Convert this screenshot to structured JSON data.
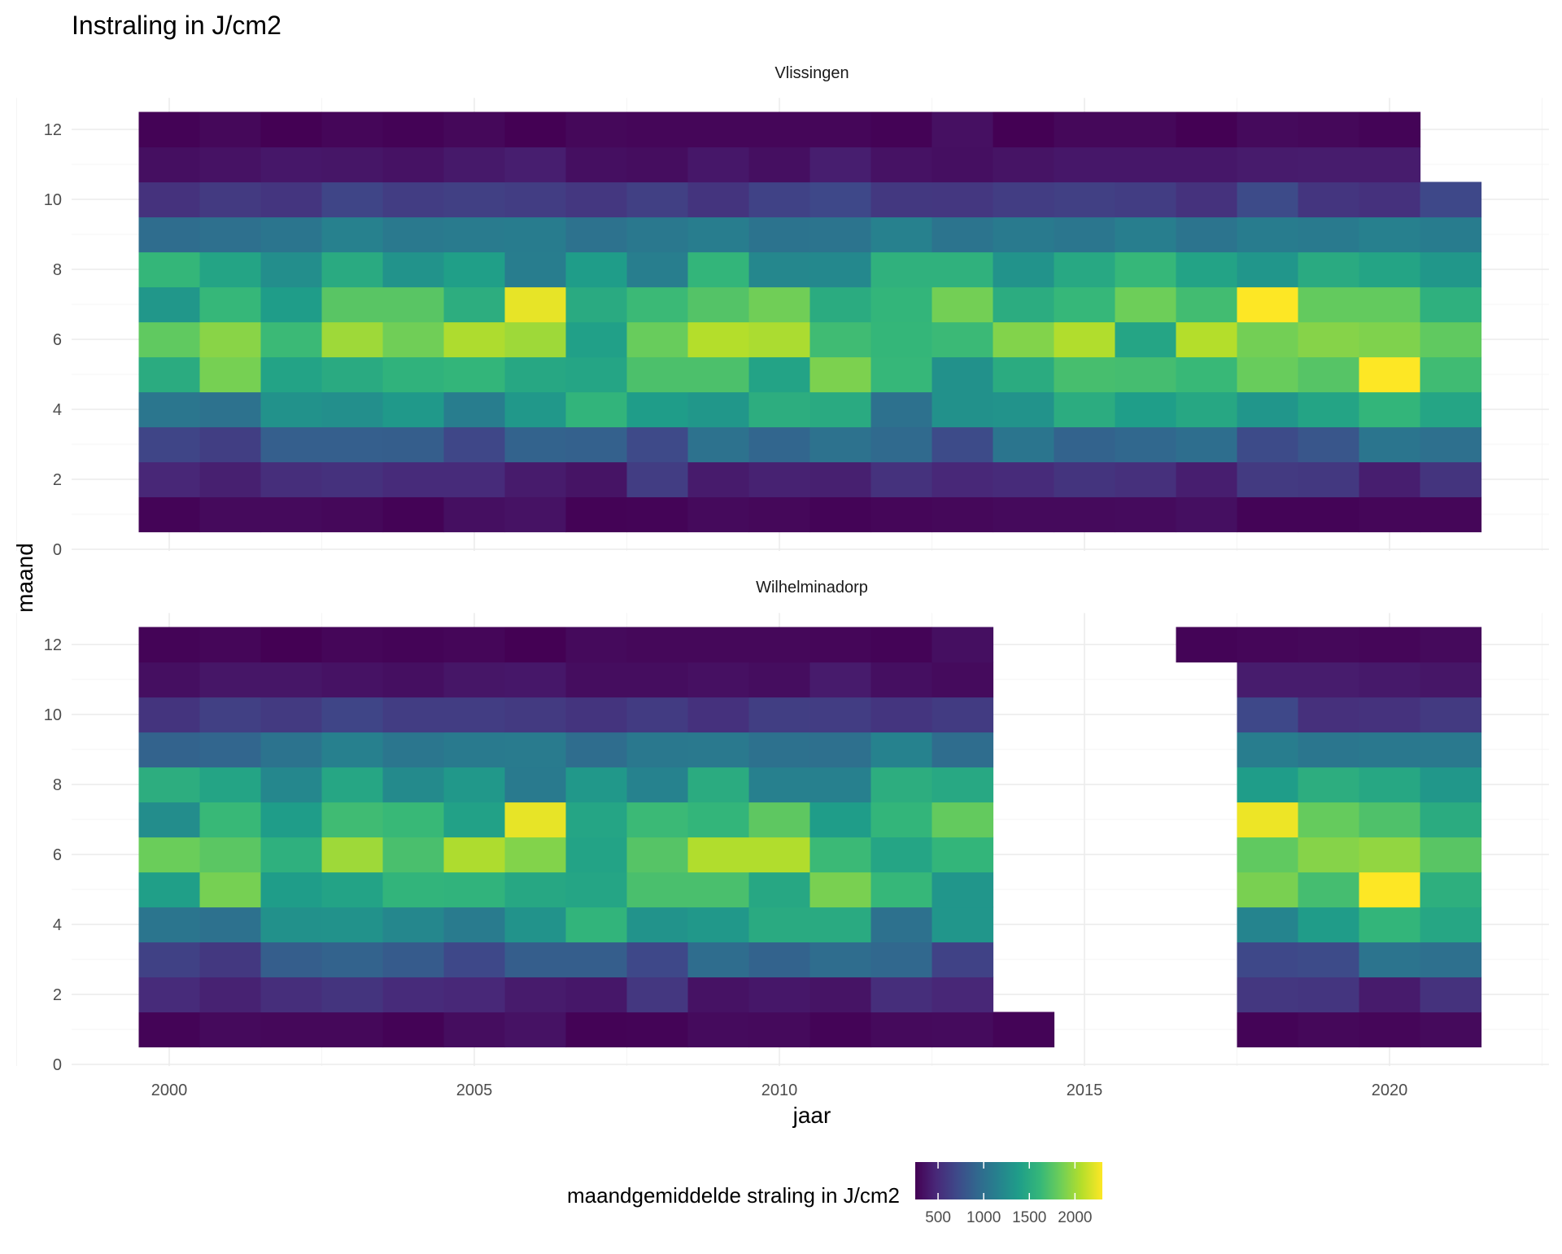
{
  "chart_data": {
    "type": "heatmap",
    "title": "Instraling in J/cm2",
    "xlabel": "jaar",
    "ylabel": "maand",
    "x_ticks": [
      2000,
      2005,
      2010,
      2015,
      2020
    ],
    "y_ticks": [
      0,
      2,
      4,
      6,
      8,
      10,
      12
    ],
    "xlim": [
      1997.5,
      2022
    ],
    "ylim": [
      0,
      12.5
    ],
    "grid": true,
    "colorscale": "viridis",
    "colors": {
      "viridis_stops": [
        "#440154",
        "#482878",
        "#3e4989",
        "#31688e",
        "#26828e",
        "#1f9e89",
        "#35b779",
        "#6ece58",
        "#b5de2b",
        "#fde725"
      ],
      "grid_major": "#ebebeb",
      "grid_minor": "#f5f5f5",
      "text": "#000000",
      "axis_text": "#4d4d4d"
    },
    "legend": {
      "title": "maandgemiddelde straling in J/cm2",
      "position": "bottom",
      "range": [
        250,
        2300
      ],
      "ticks": [
        500,
        1000,
        1500,
        2000
      ],
      "tick_labels": [
        "500",
        "1000",
        "1500",
        "2000"
      ]
    },
    "panels": [
      {
        "name": "Vlissingen",
        "start_year": 2000,
        "rows": [
          {
            "month": 1,
            "values": [
              270,
              300,
              300,
              290,
              260,
              330,
              350,
              260,
              270,
              300,
              290,
              270,
              280,
              290,
              300,
              300,
              310,
              330,
              270,
              270,
              280,
              280
            ]
          },
          {
            "month": 2,
            "values": [
              470,
              430,
              520,
              540,
              500,
              500,
              400,
              360,
              620,
              400,
              440,
              430,
              550,
              480,
              500,
              560,
              530,
              420,
              600,
              590,
              420,
              560
            ]
          },
          {
            "month": 3,
            "values": [
              680,
              630,
              870,
              870,
              860,
              690,
              900,
              880,
              710,
              1020,
              920,
              1020,
              950,
              720,
              1050,
              900,
              930,
              990,
              720,
              800,
              1050,
              1000
            ]
          },
          {
            "month": 4,
            "values": [
              1060,
              1020,
              1290,
              1270,
              1350,
              1120,
              1340,
              1590,
              1380,
              1330,
              1530,
              1500,
              1010,
              1280,
              1300,
              1520,
              1390,
              1470,
              1320,
              1440,
              1600,
              1450
            ]
          },
          {
            "month": 5,
            "values": [
              1510,
              1870,
              1430,
              1500,
              1570,
              1600,
              1470,
              1450,
              1710,
              1710,
              1430,
              1890,
              1620,
              1280,
              1510,
              1690,
              1680,
              1630,
              1820,
              1750,
              2300,
              1660
            ]
          },
          {
            "month": 6,
            "values": [
              1790,
              1930,
              1640,
              2000,
              1850,
              2050,
              2000,
              1410,
              1820,
              2070,
              2040,
              1660,
              1610,
              1640,
              1910,
              2060,
              1450,
              2070,
              1860,
              1920,
              1900,
              1790
            ]
          },
          {
            "month": 7,
            "values": [
              1330,
              1620,
              1380,
              1760,
              1760,
              1530,
              2230,
              1500,
              1640,
              1740,
              1850,
              1510,
              1600,
              1860,
              1520,
              1620,
              1840,
              1670,
              2300,
              1800,
              1800,
              1550
            ]
          },
          {
            "month": 8,
            "values": [
              1610,
              1440,
              1260,
              1500,
              1300,
              1400,
              1120,
              1380,
              1130,
              1600,
              1200,
              1210,
              1560,
              1560,
              1300,
              1480,
              1620,
              1430,
              1320,
              1500,
              1440,
              1330
            ]
          },
          {
            "month": 9,
            "values": [
              980,
              1000,
              1050,
              1150,
              1080,
              1100,
              1110,
              1020,
              1070,
              1120,
              1030,
              1040,
              1150,
              1040,
              1090,
              1060,
              1130,
              1040,
              1110,
              1090,
              1140,
              1110
            ]
          },
          {
            "month": 10,
            "values": [
              550,
              600,
              570,
              680,
              620,
              640,
              620,
              580,
              640,
              560,
              660,
              700,
              590,
              580,
              620,
              640,
              620,
              550,
              720,
              570,
              540,
              700
            ]
          },
          {
            "month": 11,
            "values": [
              330,
              350,
              380,
              370,
              350,
              390,
              420,
              330,
              320,
              380,
              330,
              420,
              350,
              330,
              360,
              380,
              380,
              380,
              400,
              410,
              410
            ]
          },
          {
            "month": 12,
            "values": [
              260,
              290,
              250,
              280,
              260,
              290,
              250,
              290,
              280,
              280,
              280,
              280,
              260,
              340,
              250,
              290,
              290,
              250,
              300,
              290,
              270
            ]
          }
        ]
      },
      {
        "name": "Wilhelminadorp",
        "start_year": 2000,
        "rows": [
          {
            "month": 1,
            "values": [
              270,
              300,
              290,
              290,
              260,
              320,
              350,
              260,
              270,
              310,
              300,
              270,
              300,
              310,
              270,
              null,
              null,
              null,
              270,
              290,
              280,
              300
            ]
          },
          {
            "month": 2,
            "values": [
              500,
              440,
              520,
              560,
              500,
              480,
              400,
              380,
              580,
              350,
              380,
              360,
              520,
              470,
              null,
              null,
              null,
              null,
              580,
              570,
              400,
              550
            ]
          },
          {
            "month": 3,
            "values": [
              650,
              590,
              860,
              900,
              840,
              700,
              860,
              860,
              700,
              980,
              900,
              980,
              930,
              660,
              null,
              null,
              null,
              null,
              700,
              720,
              1040,
              1000
            ]
          },
          {
            "month": 4,
            "values": [
              1050,
              1010,
              1280,
              1290,
              1200,
              1100,
              1300,
              1590,
              1300,
              1340,
              1500,
              1500,
              1010,
              1320,
              null,
              null,
              null,
              null,
              1180,
              1370,
              1600,
              1460
            ]
          },
          {
            "month": 5,
            "values": [
              1400,
              1870,
              1380,
              1430,
              1590,
              1580,
              1470,
              1450,
              1700,
              1700,
              1470,
              1880,
              1620,
              1320,
              null,
              null,
              null,
              null,
              1880,
              1680,
              2300,
              1540
            ]
          },
          {
            "month": 6,
            "values": [
              1830,
              1770,
              1550,
              2000,
              1700,
              2050,
              1910,
              1430,
              1750,
              2060,
              2060,
              1640,
              1450,
              1600,
              null,
              null,
              null,
              null,
              1790,
              1920,
              1960,
              1760
            ]
          },
          {
            "month": 7,
            "values": [
              1250,
              1630,
              1380,
              1660,
              1630,
              1420,
              2230,
              1450,
              1640,
              1600,
              1780,
              1380,
              1600,
              1800,
              null,
              null,
              null,
              null,
              2250,
              1810,
              1720,
              1510
            ]
          },
          {
            "month": 8,
            "values": [
              1530,
              1440,
              1200,
              1460,
              1230,
              1340,
              1090,
              1340,
              1160,
              1510,
              1140,
              1140,
              1530,
              1480,
              null,
              null,
              null,
              null,
              1380,
              1530,
              1470,
              1330
            ]
          },
          {
            "month": 9,
            "values": [
              900,
              920,
              1030,
              1140,
              1060,
              1090,
              1100,
              980,
              1070,
              1080,
              1010,
              1000,
              1160,
              980,
              null,
              null,
              null,
              null,
              1120,
              1060,
              1070,
              1080
            ]
          },
          {
            "month": 10,
            "values": [
              560,
              640,
              600,
              680,
              620,
              620,
              600,
              560,
              610,
              540,
              630,
              620,
              570,
              610,
              null,
              null,
              null,
              null,
              700,
              530,
              550,
              600
            ]
          },
          {
            "month": 11,
            "values": [
              330,
              370,
              370,
              350,
              330,
              370,
              380,
              320,
              320,
              340,
              320,
              400,
              330,
              310,
              null,
              null,
              null,
              null,
              410,
              410,
              390,
              370
            ]
          },
          {
            "month": 12,
            "values": [
              270,
              280,
              250,
              280,
              270,
              280,
              250,
              300,
              290,
              290,
              290,
              280,
              270,
              330,
              null,
              null,
              null,
              270,
              280,
              290,
              280,
              300
            ]
          }
        ]
      }
    ]
  }
}
